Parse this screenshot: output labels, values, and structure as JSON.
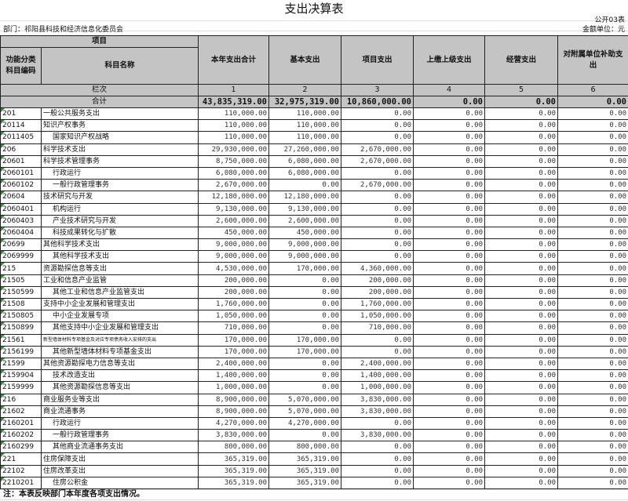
{
  "title": "支出决算表",
  "table_no": "公开03表",
  "department": "部门：祁阳县科技和经济信息化委员会",
  "unit": "金额单位：元",
  "headers": {
    "project": "项目",
    "code": "功能分类科目编码",
    "name": "科目名称",
    "columns": [
      "本年支出合计",
      "基本支出",
      "项目支出",
      "上缴上级支出",
      "经营支出",
      "对附属单位补助支出"
    ],
    "row_index_label": "栏次",
    "column_numbers": [
      "1",
      "2",
      "3",
      "4",
      "5",
      "6"
    ]
  },
  "total": {
    "label": "合计",
    "values": [
      "43,835,319.00",
      "32,975,319.00",
      "10,860,000.00",
      "0.00",
      "0.00",
      "0.00"
    ]
  },
  "rows": [
    {
      "code": "201",
      "name": "一般公共服务支出",
      "indent": false,
      "values": [
        "110,000.00",
        "110,000.00",
        "0.00",
        "0.00",
        "0.00",
        "0.00"
      ]
    },
    {
      "code": "20114",
      "name": "知识产权事务",
      "indent": false,
      "values": [
        "110,000.00",
        "110,000.00",
        "0.00",
        "0.00",
        "0.00",
        "0.00"
      ]
    },
    {
      "code": "2011405",
      "name": "国家知识产权战略",
      "indent": true,
      "values": [
        "110,000.00",
        "110,000.00",
        "0.00",
        "0.00",
        "0.00",
        "0.00"
      ]
    },
    {
      "code": "206",
      "name": "科学技术支出",
      "indent": false,
      "values": [
        "29,930,000.00",
        "27,260,000.00",
        "2,670,000.00",
        "0.00",
        "0.00",
        "0.00"
      ]
    },
    {
      "code": "20601",
      "name": "科学技术管理事务",
      "indent": false,
      "values": [
        "8,750,000.00",
        "6,080,000.00",
        "2,670,000.00",
        "0.00",
        "0.00",
        "0.00"
      ]
    },
    {
      "code": "2060101",
      "name": "行政运行",
      "indent": true,
      "values": [
        "6,080,000.00",
        "6,080,000.00",
        "0.00",
        "0.00",
        "0.00",
        "0.00"
      ]
    },
    {
      "code": "2060102",
      "name": "一般行政管理事务",
      "indent": true,
      "values": [
        "2,670,000.00",
        "0.00",
        "2,670,000.00",
        "0.00",
        "0.00",
        "0.00"
      ]
    },
    {
      "code": "20604",
      "name": "技术研究与开发",
      "indent": false,
      "values": [
        "12,180,000.00",
        "12,180,000.00",
        "0.00",
        "0.00",
        "0.00",
        "0.00"
      ]
    },
    {
      "code": "2060401",
      "name": "机构运行",
      "indent": true,
      "values": [
        "9,130,000.00",
        "9,130,000.00",
        "0.00",
        "0.00",
        "0.00",
        "0.00"
      ]
    },
    {
      "code": "2060403",
      "name": "产业技术研究与开发",
      "indent": true,
      "values": [
        "2,600,000.00",
        "2,600,000.00",
        "0.00",
        "0.00",
        "0.00",
        "0.00"
      ]
    },
    {
      "code": "2060404",
      "name": "科技成果转化与扩散",
      "indent": true,
      "values": [
        "450,000.00",
        "450,000.00",
        "0.00",
        "0.00",
        "0.00",
        "0.00"
      ]
    },
    {
      "code": "20699",
      "name": "其他科学技术支出",
      "indent": false,
      "values": [
        "9,000,000.00",
        "9,000,000.00",
        "0.00",
        "0.00",
        "0.00",
        "0.00"
      ]
    },
    {
      "code": "2069999",
      "name": "其他科学技术支出",
      "indent": true,
      "values": [
        "9,000,000.00",
        "9,000,000.00",
        "0.00",
        "0.00",
        "0.00",
        "0.00"
      ]
    },
    {
      "code": "215",
      "name": "资源勘探信息等支出",
      "indent": false,
      "values": [
        "4,530,000.00",
        "170,000.00",
        "4,360,000.00",
        "0.00",
        "0.00",
        "0.00"
      ]
    },
    {
      "code": "21505",
      "name": "工业和信息产业监管",
      "indent": false,
      "values": [
        "200,000.00",
        "0.00",
        "200,000.00",
        "0.00",
        "0.00",
        "0.00"
      ]
    },
    {
      "code": "2150599",
      "name": "其他工业和信息产业监管支出",
      "indent": true,
      "values": [
        "200,000.00",
        "0.00",
        "200,000.00",
        "0.00",
        "0.00",
        "0.00"
      ]
    },
    {
      "code": "21508",
      "name": "支持中小企业发展和管理支出",
      "indent": false,
      "values": [
        "1,760,000.00",
        "0.00",
        "1,760,000.00",
        "0.00",
        "0.00",
        "0.00"
      ]
    },
    {
      "code": "2150805",
      "name": "中小企业发展专项",
      "indent": true,
      "values": [
        "1,050,000.00",
        "0.00",
        "1,050,000.00",
        "0.00",
        "0.00",
        "0.00"
      ]
    },
    {
      "code": "2150899",
      "name": "其他支持中小企业发展和管理支出",
      "indent": true,
      "values": [
        "710,000.00",
        "0.00",
        "710,000.00",
        "0.00",
        "0.00",
        "0.00"
      ]
    },
    {
      "code": "21561",
      "name": "新型墙体材料专项基金及对应专项债务收入安排的支出",
      "indent": false,
      "small": true,
      "values": [
        "170,000.00",
        "170,000.00",
        "0.00",
        "0.00",
        "0.00",
        "0.00"
      ]
    },
    {
      "code": "2156199",
      "name": "其他新型墙体材料专项基金支出",
      "indent": true,
      "values": [
        "170,000.00",
        "170,000.00",
        "0.00",
        "0.00",
        "0.00",
        "0.00"
      ]
    },
    {
      "code": "21599",
      "name": "其他资源勘探电力信息等支出",
      "indent": false,
      "values": [
        "2,400,000.00",
        "0.00",
        "2,400,000.00",
        "0.00",
        "0.00",
        "0.00"
      ]
    },
    {
      "code": "2159904",
      "name": "技术改造支出",
      "indent": true,
      "values": [
        "1,400,000.00",
        "0.00",
        "1,400,000.00",
        "0.00",
        "0.00",
        "0.00"
      ]
    },
    {
      "code": "2159999",
      "name": "其他资源勘探信息等支出",
      "indent": true,
      "values": [
        "1,000,000.00",
        "0.00",
        "1,000,000.00",
        "0.00",
        "0.00",
        "0.00"
      ]
    },
    {
      "code": "216",
      "name": "商业服务业等支出",
      "indent": false,
      "values": [
        "8,900,000.00",
        "5,070,000.00",
        "3,830,000.00",
        "0.00",
        "0.00",
        "0.00"
      ]
    },
    {
      "code": "21602",
      "name": "商业流通事务",
      "indent": false,
      "values": [
        "8,900,000.00",
        "5,070,000.00",
        "3,830,000.00",
        "0.00",
        "0.00",
        "0.00"
      ]
    },
    {
      "code": "2160201",
      "name": "行政运行",
      "indent": true,
      "values": [
        "4,270,000.00",
        "4,270,000.00",
        "0.00",
        "0.00",
        "0.00",
        "0.00"
      ]
    },
    {
      "code": "2160202",
      "name": "一般行政管理事务",
      "indent": true,
      "values": [
        "3,830,000.00",
        "0.00",
        "3,830,000.00",
        "0.00",
        "0.00",
        "0.00"
      ]
    },
    {
      "code": "2160299",
      "name": "其他商业流通事务支出",
      "indent": true,
      "values": [
        "800,000.00",
        "800,000.00",
        "0.00",
        "0.00",
        "0.00",
        "0.00"
      ]
    },
    {
      "code": "221",
      "name": "住房保障支出",
      "indent": false,
      "values": [
        "365,319.00",
        "365,319.00",
        "0.00",
        "0.00",
        "0.00",
        "0.00"
      ]
    },
    {
      "code": "22102",
      "name": "住房改革支出",
      "indent": false,
      "values": [
        "365,319.00",
        "365,319.00",
        "0.00",
        "0.00",
        "0.00",
        "0.00"
      ]
    },
    {
      "code": "2210201",
      "name": "住房公积金",
      "indent": true,
      "values": [
        "365,319.00",
        "365,319.00",
        "0.00",
        "0.00",
        "0.00",
        "0.00"
      ]
    }
  ],
  "note": "注：本表反映部门本年度各项支出情况。",
  "colors": {
    "header_bg": "#c4c4c4",
    "marker": "#2e8b2e"
  }
}
